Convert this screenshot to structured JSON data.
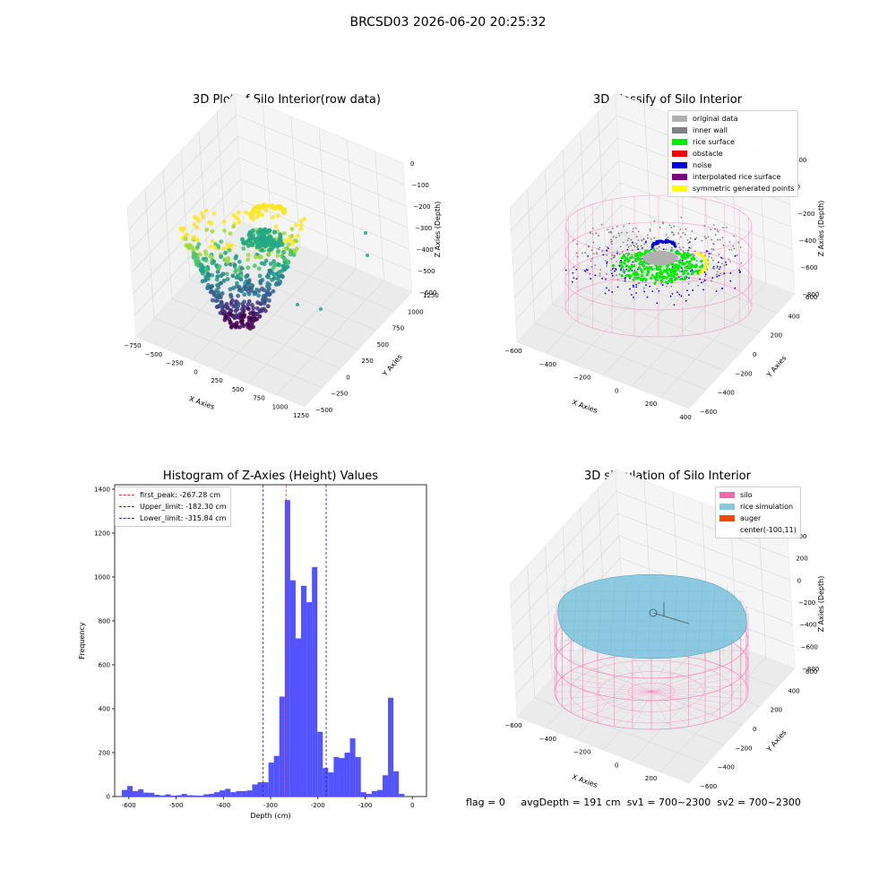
{
  "figure": {
    "suptitle": "BRCSD03 2026-06-20 20:25:32",
    "footer": {
      "flag": "flag = 0",
      "avg_depth": "avgDepth = 191 cm",
      "sv1": "sv1 = 700~2300",
      "sv2": "sv2 = 700~2300"
    }
  },
  "colors": {
    "hist_bar": "#4a4aff",
    "first_peak": "#e23333",
    "limit_lines": "#2222aa",
    "silo_wire": "#ff66b2",
    "rice_sim": "#87c8e0",
    "auger": "#ff4500",
    "noise": "#0000dd",
    "rice_surface": "#00ee00",
    "original": "#b0b0b0",
    "inner_wall": "#808080",
    "obstacle": "#ee0000",
    "interpolated": "#800080",
    "symmetric": "#ffff00"
  },
  "chart_data": [
    {
      "type": "scatter",
      "title": "3D Plot of Silo Interior(row data)",
      "xlabel": "X Axies",
      "ylabel": "Y Axies",
      "zlabel": "Z Axies (Depth)",
      "x_ticks": [
        "−750",
        "−500",
        "−250",
        "0",
        "250",
        "500",
        "750",
        "1000",
        "1250"
      ],
      "y_ticks": [
        "−500",
        "−250",
        "0",
        "250",
        "500",
        "750",
        "1000",
        "1250"
      ],
      "z_ticks": [
        "0",
        "−100",
        "−200",
        "−300",
        "−400",
        "−500",
        "−600"
      ],
      "colormap": "viridis"
    },
    {
      "type": "scatter",
      "title": "3D classify of Silo Interior",
      "xlabel": "X Axies",
      "ylabel": "Y Axies",
      "zlabel": "Z Axies (Depth)",
      "x_ticks": [
        "−600",
        "−400",
        "−200",
        "0",
        "200",
        "400"
      ],
      "y_ticks": [
        "−600",
        "−400",
        "−200",
        "0",
        "200",
        "400",
        "600"
      ],
      "z_ticks": [
        "200",
        "0",
        "−200",
        "−400",
        "−600",
        "−800"
      ],
      "legend": [
        {
          "label": "original data",
          "color": "#b0b0b0"
        },
        {
          "label": "inner wall",
          "color": "#808080"
        },
        {
          "label": "rice surface",
          "color": "#00ee00"
        },
        {
          "label": "obstacle",
          "color": "#ee0000"
        },
        {
          "label": "noise",
          "color": "#0000dd"
        },
        {
          "label": "interpolated rice surface",
          "color": "#800080"
        },
        {
          "label": "symmetric generated points",
          "color": "#ffff00"
        }
      ],
      "legend_loc": "upper right"
    },
    {
      "type": "bar",
      "title": "Histogram of Z-Axies (Height) Values",
      "xlabel": "Depth (cm)",
      "ylabel": "Frequency",
      "xlim": [
        -630,
        30
      ],
      "ylim": [
        0,
        1420
      ],
      "x_ticks": [
        -600,
        -500,
        -400,
        -300,
        -200,
        -100,
        0
      ],
      "y_ticks": [
        0,
        200,
        400,
        600,
        800,
        1000,
        1200,
        1400
      ],
      "bin_width": 11.5,
      "bins": [
        [
          -615,
          30
        ],
        [
          -603.5,
          48
        ],
        [
          -592,
          25
        ],
        [
          -580.5,
          33
        ],
        [
          -569,
          18
        ],
        [
          -557.5,
          17
        ],
        [
          -546,
          8
        ],
        [
          -534.5,
          5
        ],
        [
          -523,
          10
        ],
        [
          -511.5,
          4
        ],
        [
          -500,
          6
        ],
        [
          -488.5,
          12
        ],
        [
          -477,
          6
        ],
        [
          -465.5,
          5
        ],
        [
          -454,
          4
        ],
        [
          -442.5,
          10
        ],
        [
          -431,
          12
        ],
        [
          -419.5,
          20
        ],
        [
          -408,
          28
        ],
        [
          -396.5,
          35
        ],
        [
          -385,
          20
        ],
        [
          -373.5,
          25
        ],
        [
          -362,
          25
        ],
        [
          -350.5,
          28
        ],
        [
          -339,
          55
        ],
        [
          -327.5,
          65
        ],
        [
          -316,
          65
        ],
        [
          -304.5,
          155
        ],
        [
          -293,
          185
        ],
        [
          -281.5,
          455
        ],
        [
          -270,
          1350
        ],
        [
          -258.5,
          985
        ],
        [
          -247,
          720
        ],
        [
          -235.5,
          960
        ],
        [
          -224,
          885
        ],
        [
          -212.5,
          1045
        ],
        [
          -201,
          295
        ],
        [
          -189.5,
          130
        ],
        [
          -178,
          110
        ],
        [
          -166.5,
          180
        ],
        [
          -155,
          175
        ],
        [
          -143.5,
          200
        ],
        [
          -132,
          265
        ],
        [
          -120.5,
          180
        ],
        [
          -109,
          20
        ],
        [
          -97.5,
          12
        ],
        [
          -86,
          25
        ],
        [
          -74.5,
          30
        ],
        [
          -63,
          97
        ],
        [
          -51.5,
          450
        ],
        [
          -40,
          115
        ],
        [
          -28.5,
          12
        ]
      ],
      "vlines": [
        {
          "label": "first_peak: -267.28 cm",
          "x": -267.28,
          "color": "#e23333"
        },
        {
          "label": "Upper_limit: -182.30 cm",
          "x": -182.3,
          "color": "#2222aa"
        },
        {
          "label": "Lower_limit: -315.84 cm",
          "x": -315.84,
          "color": "#2222aa"
        }
      ],
      "legend_loc": "upper left"
    },
    {
      "type": "surface",
      "title": "3D simulation of Silo Interior",
      "xlabel": "X Axies",
      "ylabel": "Y Axies",
      "zlabel": "Z Axies (Depth)",
      "x_ticks": [
        "−600",
        "−400",
        "−200",
        "0",
        "200",
        "400"
      ],
      "y_ticks": [
        "−600",
        "−400",
        "−200",
        "0",
        "200",
        "400",
        "600"
      ],
      "z_ticks": [
        "400",
        "200",
        "0",
        "−200",
        "−400",
        "−600",
        "−800"
      ],
      "legend": [
        {
          "label": "silo",
          "color": "#ff66b2"
        },
        {
          "label": "rice simulation",
          "color": "#87c8e0"
        },
        {
          "label": "auger",
          "color": "#ff4500"
        },
        {
          "label": "center(-100,11)",
          "color": ""
        }
      ],
      "legend_loc": "upper right"
    }
  ]
}
